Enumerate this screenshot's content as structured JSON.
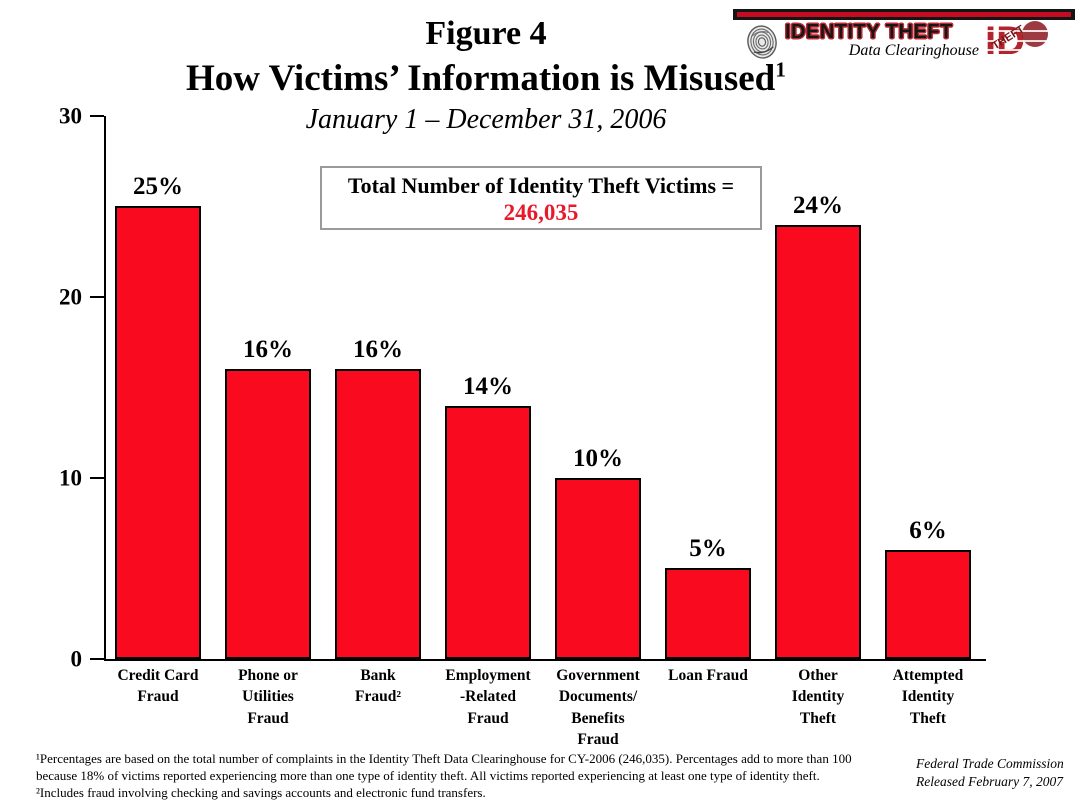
{
  "header": {
    "figure_label": "Figure 4",
    "title": "How Victims’ Information is Misused",
    "title_superscript": "1",
    "subtitle": "January 1 – December 31, 2006"
  },
  "logo": {
    "title": "IDENTITY THEFT",
    "subtitle": "Data Clearinghouse",
    "badge_letters": "ID",
    "badge_word": "THEFT",
    "accent_red": "#c60c22",
    "outline_red": "#bb2b33"
  },
  "total_box": {
    "label": "Total Number of Identity Theft Victims =",
    "value": "246,035",
    "value_color": "#e8192b"
  },
  "chart_data": {
    "type": "bar",
    "title": "How Victims’ Information is Misused",
    "period": "January 1 – December 31, 2006",
    "categories": [
      "Credit Card\nFraud",
      "Phone or\nUtilities\nFraud",
      "Bank\nFraud²",
      "Employment\n-Related\nFraud",
      "Government\nDocuments/\nBenefits\nFraud",
      "Loan Fraud",
      "Other\nIdentity\nTheft",
      "Attempted\nIdentity\nTheft"
    ],
    "values": [
      25,
      16,
      16,
      14,
      10,
      5,
      24,
      6
    ],
    "bar_labels": [
      "25%",
      "16%",
      "16%",
      "14%",
      "10%",
      "5%",
      "24%",
      "6%"
    ],
    "ylabel": "",
    "xlabel": "",
    "ylim": [
      0,
      30
    ],
    "yticks": [
      0,
      10,
      20,
      30
    ],
    "bar_color": "#fa0a1e",
    "bar_border_color": "#000000",
    "grid": false,
    "legend": false
  },
  "footnotes": {
    "note1": "¹Percentages are based on the total number of complaints in the Identity Theft Data Clearinghouse for CY-2006 (246,035).  Percentages add to more than 100\nbecause 18% of victims reported experiencing more than one type of identity theft.  All victims reported experiencing at least one type of identity theft.",
    "note2": "²Includes fraud involving checking and savings accounts and electronic fund transfers."
  },
  "credit": {
    "line1": "Federal Trade Commission",
    "line2": "Released February 7, 2007"
  }
}
